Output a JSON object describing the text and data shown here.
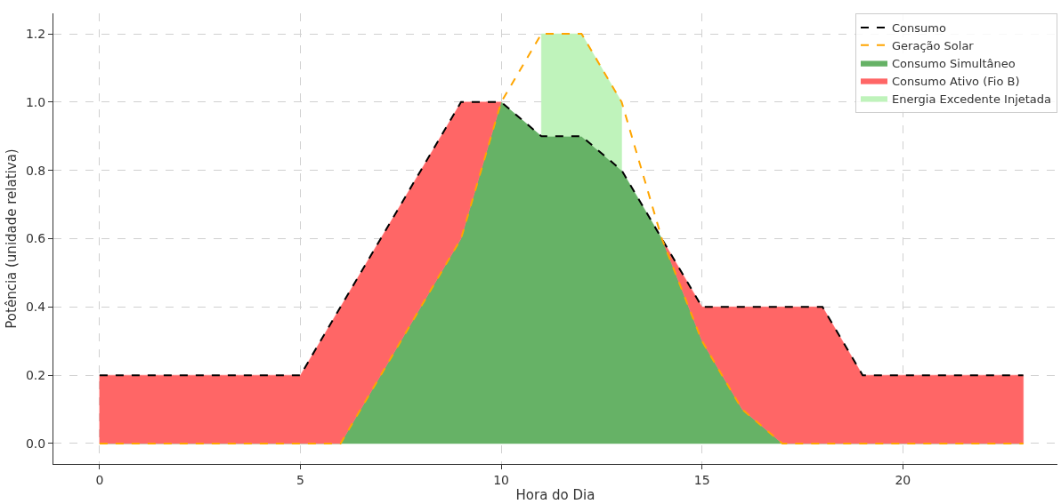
{
  "chart_data": {
    "type": "line",
    "xlabel": "Hora do Dia",
    "ylabel": "Potência (unidade relativa)",
    "x": [
      0,
      1,
      2,
      3,
      4,
      5,
      6,
      7,
      8,
      9,
      10,
      11,
      12,
      13,
      14,
      15,
      16,
      17,
      18,
      19,
      20,
      21,
      22,
      23
    ],
    "xlim": [
      -1.15,
      23.85
    ],
    "ylim": [
      -0.06,
      1.26
    ],
    "xticks": [
      0,
      5,
      10,
      15,
      20
    ],
    "yticks": [
      {
        "value": 0,
        "label": "0.0"
      },
      {
        "value": 0.2,
        "label": "0.2"
      },
      {
        "value": 0.4,
        "label": "0.4"
      },
      {
        "value": 0.6,
        "label": "0.6"
      },
      {
        "value": 0.8,
        "label": "0.8"
      },
      {
        "value": 1.0,
        "label": "1.0"
      },
      {
        "value": 1.2,
        "label": "1.2"
      }
    ],
    "grid": true,
    "legend": "top right",
    "stacked": true,
    "series": [
      {
        "name": "Consumo Simultâneo",
        "type": "area",
        "color": "#66b266",
        "values": [
          0,
          0,
          0,
          0,
          0,
          0,
          0,
          0.2,
          0.4,
          0.6,
          1.0,
          0.9,
          0.9,
          0.8,
          0.6,
          0.3,
          0.1,
          0,
          0,
          0,
          0,
          0,
          0,
          0
        ]
      },
      {
        "name": "Consumo Ativo (Fio B)",
        "type": "area",
        "color": "#ff6666",
        "values": [
          0.2,
          0.2,
          0.2,
          0.2,
          0.2,
          0.2,
          0.4,
          0.4,
          0.4,
          0.4,
          0,
          null,
          null,
          null,
          0,
          0.1,
          0.3,
          0.4,
          0.4,
          0.2,
          0.2,
          0.2,
          0.2,
          0.2
        ]
      },
      {
        "name": "Energia Excedente Injetada",
        "type": "area",
        "color": "#bff3bb",
        "values": [
          null,
          null,
          null,
          null,
          null,
          null,
          null,
          null,
          null,
          null,
          null,
          0.3,
          0.3,
          0.2,
          null,
          null,
          null,
          null,
          null,
          null,
          null,
          null,
          null,
          null
        ]
      },
      {
        "name": "Consumo",
        "color": "#000000",
        "line_style": "dashed",
        "values": [
          0.2,
          0.2,
          0.2,
          0.2,
          0.2,
          0.2,
          0.4,
          0.6,
          0.8,
          1.0,
          1.0,
          0.9,
          0.9,
          0.8,
          0.6,
          0.4,
          0.4,
          0.4,
          0.4,
          0.2,
          0.2,
          0.2,
          0.2,
          0.2
        ]
      },
      {
        "name": "Geração Solar",
        "color": "#ffa500",
        "line_style": "dashed",
        "values": [
          0,
          0,
          0,
          0,
          0,
          0,
          0,
          0.2,
          0.4,
          0.6,
          1.0,
          1.2,
          1.2,
          1.0,
          0.6,
          0.3,
          0.1,
          0,
          0,
          0,
          0,
          0,
          0,
          0
        ]
      }
    ]
  }
}
